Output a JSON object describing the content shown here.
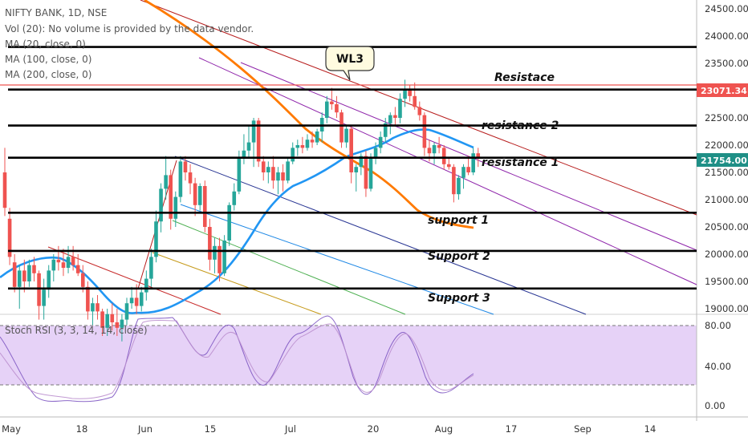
{
  "header": {
    "symbol": "NIFTY BANK, 1D, NSE",
    "indicators": [
      "Vol (20): No volume is provided by the data vendor.",
      "MA (20, close, 0)",
      "MA (100, close, 0)",
      "MA (200, close, 0)"
    ]
  },
  "rsi_label": "Stoch RSI (3, 3, 14, 14, close)",
  "callout": "WL3",
  "price_tags": {
    "last": "21754.00",
    "resistance": "23071.34",
    "last_color": "#1f8f86",
    "resistance_color": "#ef5350"
  },
  "colors": {
    "up": "#26a69a",
    "down": "#ef5350",
    "ma20": "#2196f3",
    "ma_orange": "#ff7a00",
    "rsi_band": "#e6d2f7"
  },
  "chart_data": {
    "type": "candlestick",
    "y_axis_ticks": [
      "24500.00",
      "24000.00",
      "23500.00",
      "23000.00",
      "22500.00",
      "22000.00",
      "21500.00",
      "21000.00",
      "20500.00",
      "20000.00",
      "19500.00",
      "19000.00"
    ],
    "x_axis_ticks": [
      "May",
      "18",
      "Jun",
      "15",
      "Jul",
      "20",
      "Aug",
      "17",
      "Sep",
      "14"
    ],
    "rsi_axis_ticks": [
      "80.00",
      "40.00",
      "0.00"
    ],
    "horizontal_levels": [
      {
        "label": "Resistace",
        "price": 23020
      },
      {
        "label": "resistance 2",
        "price": 22360
      },
      {
        "label": "resistance 1",
        "price": 21770
      },
      {
        "label": "support 1",
        "price": 20760
      },
      {
        "label": "Support 2",
        "price": 20060
      },
      {
        "label": "Support 3",
        "price": 19370
      }
    ],
    "top_level_price": 23800,
    "candles": [
      {
        "o": 21500,
        "h": 21950,
        "l": 20700,
        "c": 20850
      },
      {
        "o": 20650,
        "h": 20850,
        "l": 19800,
        "c": 19950
      },
      {
        "o": 19850,
        "h": 20000,
        "l": 19300,
        "c": 19400
      },
      {
        "o": 19400,
        "h": 19800,
        "l": 19000,
        "c": 19700
      },
      {
        "o": 19700,
        "h": 19900,
        "l": 19300,
        "c": 19500
      },
      {
        "o": 19500,
        "h": 19900,
        "l": 19400,
        "c": 19800
      },
      {
        "o": 19800,
        "h": 19950,
        "l": 19500,
        "c": 19650
      },
      {
        "o": 19650,
        "h": 19700,
        "l": 18800,
        "c": 19050
      },
      {
        "o": 19050,
        "h": 19550,
        "l": 18800,
        "c": 19350
      },
      {
        "o": 19350,
        "h": 19800,
        "l": 19200,
        "c": 19700
      },
      {
        "o": 19700,
        "h": 20000,
        "l": 19500,
        "c": 19900
      },
      {
        "o": 19900,
        "h": 20150,
        "l": 19700,
        "c": 19850
      },
      {
        "o": 19850,
        "h": 20100,
        "l": 19600,
        "c": 19750
      },
      {
        "o": 19750,
        "h": 20150,
        "l": 19650,
        "c": 19950
      },
      {
        "o": 19950,
        "h": 20150,
        "l": 19700,
        "c": 19800
      },
      {
        "o": 19800,
        "h": 20000,
        "l": 19600,
        "c": 19650
      },
      {
        "o": 19650,
        "h": 19800,
        "l": 19300,
        "c": 19400
      },
      {
        "o": 19400,
        "h": 19500,
        "l": 18800,
        "c": 18950
      },
      {
        "o": 18950,
        "h": 19200,
        "l": 18700,
        "c": 19100
      },
      {
        "o": 19100,
        "h": 19250,
        "l": 18800,
        "c": 18950
      },
      {
        "o": 18950,
        "h": 19000,
        "l": 18500,
        "c": 18650
      },
      {
        "o": 18650,
        "h": 19000,
        "l": 18500,
        "c": 18900
      },
      {
        "o": 18900,
        "h": 19100,
        "l": 18600,
        "c": 18750
      },
      {
        "o": 18750,
        "h": 19000,
        "l": 18500,
        "c": 18650
      },
      {
        "o": 18650,
        "h": 18900,
        "l": 18400,
        "c": 18800
      },
      {
        "o": 18800,
        "h": 19200,
        "l": 18700,
        "c": 19100
      },
      {
        "o": 19100,
        "h": 19400,
        "l": 19000,
        "c": 19200
      },
      {
        "o": 19200,
        "h": 19450,
        "l": 18900,
        "c": 19050
      },
      {
        "o": 19050,
        "h": 19400,
        "l": 18950,
        "c": 19300
      },
      {
        "o": 19300,
        "h": 19700,
        "l": 19150,
        "c": 19550
      },
      {
        "o": 19550,
        "h": 20100,
        "l": 19400,
        "c": 19950
      },
      {
        "o": 19950,
        "h": 20800,
        "l": 19850,
        "c": 20600
      },
      {
        "o": 20600,
        "h": 21300,
        "l": 20400,
        "c": 21200
      },
      {
        "o": 21200,
        "h": 21800,
        "l": 21000,
        "c": 21450
      },
      {
        "o": 21450,
        "h": 21550,
        "l": 20450,
        "c": 20650
      },
      {
        "o": 20650,
        "h": 21150,
        "l": 20500,
        "c": 21050
      },
      {
        "o": 21050,
        "h": 21800,
        "l": 20950,
        "c": 21700
      },
      {
        "o": 21700,
        "h": 21800,
        "l": 21350,
        "c": 21500
      },
      {
        "o": 21500,
        "h": 21650,
        "l": 21100,
        "c": 21300
      },
      {
        "o": 21300,
        "h": 21400,
        "l": 20700,
        "c": 20900
      },
      {
        "o": 20900,
        "h": 21300,
        "l": 20800,
        "c": 21250
      },
      {
        "o": 21250,
        "h": 21350,
        "l": 20400,
        "c": 20500
      },
      {
        "o": 20500,
        "h": 20650,
        "l": 19700,
        "c": 19900
      },
      {
        "o": 19900,
        "h": 20300,
        "l": 19650,
        "c": 20150
      },
      {
        "o": 20150,
        "h": 20300,
        "l": 19500,
        "c": 19650
      },
      {
        "o": 19650,
        "h": 20350,
        "l": 19600,
        "c": 20250
      },
      {
        "o": 20250,
        "h": 20950,
        "l": 20150,
        "c": 20900
      },
      {
        "o": 20900,
        "h": 21300,
        "l": 20800,
        "c": 21150
      },
      {
        "o": 21150,
        "h": 21900,
        "l": 21100,
        "c": 21750
      },
      {
        "o": 21750,
        "h": 22200,
        "l": 21650,
        "c": 21900
      },
      {
        "o": 21900,
        "h": 22350,
        "l": 21750,
        "c": 22050
      },
      {
        "o": 22050,
        "h": 22500,
        "l": 21600,
        "c": 22450
      },
      {
        "o": 22450,
        "h": 22500,
        "l": 21600,
        "c": 21700
      },
      {
        "o": 21700,
        "h": 21800,
        "l": 21350,
        "c": 21500
      },
      {
        "o": 21500,
        "h": 21700,
        "l": 21300,
        "c": 21600
      },
      {
        "o": 21600,
        "h": 21800,
        "l": 21200,
        "c": 21350
      },
      {
        "o": 21350,
        "h": 21600,
        "l": 21100,
        "c": 21500
      },
      {
        "o": 21500,
        "h": 21650,
        "l": 21150,
        "c": 21350
      },
      {
        "o": 21350,
        "h": 21750,
        "l": 21300,
        "c": 21700
      },
      {
        "o": 21700,
        "h": 22050,
        "l": 21650,
        "c": 21950
      },
      {
        "o": 21950,
        "h": 22100,
        "l": 21800,
        "c": 22000
      },
      {
        "o": 22000,
        "h": 22150,
        "l": 21850,
        "c": 21950
      },
      {
        "o": 21950,
        "h": 22200,
        "l": 21900,
        "c": 22100
      },
      {
        "o": 22100,
        "h": 22250,
        "l": 21950,
        "c": 22050
      },
      {
        "o": 22050,
        "h": 22300,
        "l": 22000,
        "c": 22250
      },
      {
        "o": 22250,
        "h": 22600,
        "l": 22050,
        "c": 22500
      },
      {
        "o": 22500,
        "h": 22900,
        "l": 22400,
        "c": 22800
      },
      {
        "o": 22800,
        "h": 23050,
        "l": 22650,
        "c": 22750
      },
      {
        "o": 22750,
        "h": 22900,
        "l": 22500,
        "c": 22600
      },
      {
        "o": 22600,
        "h": 22650,
        "l": 21950,
        "c": 22050
      },
      {
        "o": 22050,
        "h": 22350,
        "l": 21950,
        "c": 22300
      },
      {
        "o": 22300,
        "h": 22350,
        "l": 21300,
        "c": 21500
      },
      {
        "o": 21500,
        "h": 21650,
        "l": 21150,
        "c": 21600
      },
      {
        "o": 21600,
        "h": 21850,
        "l": 21450,
        "c": 21800
      },
      {
        "o": 21800,
        "h": 21900,
        "l": 21050,
        "c": 21200
      },
      {
        "o": 21200,
        "h": 21850,
        "l": 21150,
        "c": 21750
      },
      {
        "o": 21750,
        "h": 22050,
        "l": 21650,
        "c": 21950
      },
      {
        "o": 21950,
        "h": 22250,
        "l": 21850,
        "c": 22150
      },
      {
        "o": 22150,
        "h": 22500,
        "l": 22050,
        "c": 22400
      },
      {
        "o": 22400,
        "h": 22600,
        "l": 22200,
        "c": 22550
      },
      {
        "o": 22550,
        "h": 22700,
        "l": 22350,
        "c": 22500
      },
      {
        "o": 22500,
        "h": 22950,
        "l": 22400,
        "c": 22850
      },
      {
        "o": 22850,
        "h": 23200,
        "l": 22700,
        "c": 23000
      },
      {
        "o": 23000,
        "h": 23100,
        "l": 22800,
        "c": 22900
      },
      {
        "o": 22900,
        "h": 23150,
        "l": 22650,
        "c": 22700
      },
      {
        "o": 22700,
        "h": 22800,
        "l": 22450,
        "c": 22550
      },
      {
        "o": 22550,
        "h": 22600,
        "l": 21800,
        "c": 21950
      },
      {
        "o": 21950,
        "h": 22100,
        "l": 21700,
        "c": 21850
      },
      {
        "o": 21850,
        "h": 22050,
        "l": 21650,
        "c": 22000
      },
      {
        "o": 22000,
        "h": 22150,
        "l": 21850,
        "c": 21950
      },
      {
        "o": 21950,
        "h": 22000,
        "l": 21550,
        "c": 21650
      },
      {
        "o": 21650,
        "h": 21750,
        "l": 21550,
        "c": 21600
      },
      {
        "o": 21600,
        "h": 21650,
        "l": 20950,
        "c": 21100
      },
      {
        "o": 21100,
        "h": 21450,
        "l": 21000,
        "c": 21400
      },
      {
        "o": 21400,
        "h": 21650,
        "l": 21200,
        "c": 21600
      },
      {
        "o": 21600,
        "h": 21800,
        "l": 21450,
        "c": 21500
      },
      {
        "o": 21500,
        "h": 21950,
        "l": 21450,
        "c": 21850
      },
      {
        "o": 21850,
        "h": 21950,
        "l": 21600,
        "c": 21754
      }
    ]
  }
}
